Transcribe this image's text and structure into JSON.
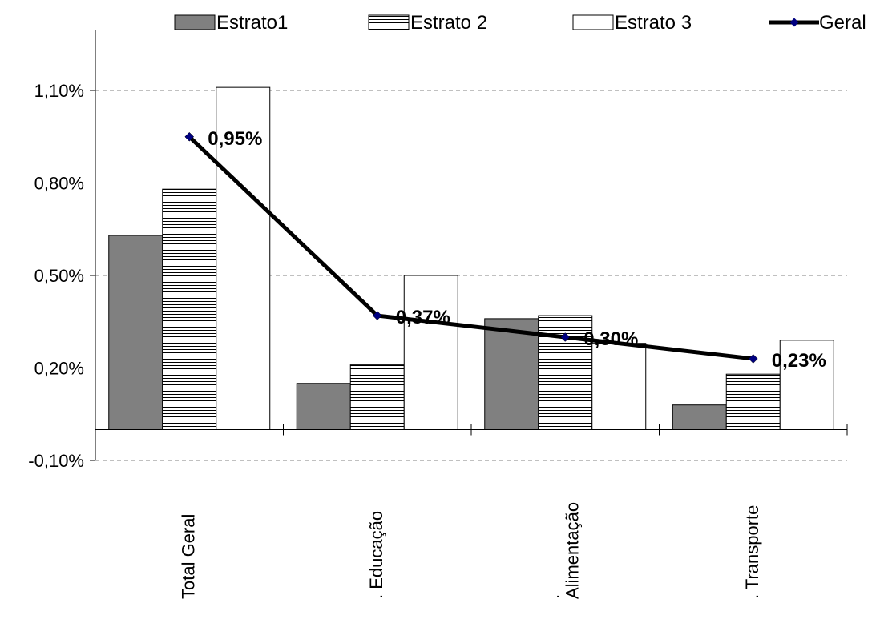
{
  "chart_data": {
    "type": "bar",
    "categories": [
      "Total Geral",
      ". Educação",
      ". Alimentação",
      ". Transporte"
    ],
    "series": [
      {
        "name": "Estrato1",
        "kind": "bar",
        "values": [
          0.63,
          0.15,
          0.36,
          0.08
        ],
        "fill": "#808080",
        "pattern": "solid"
      },
      {
        "name": "Estrato 2",
        "kind": "bar",
        "values": [
          0.78,
          0.21,
          0.37,
          0.18
        ],
        "fill": "#ffffff",
        "pattern": "horizontal-lines"
      },
      {
        "name": "Estrato 3",
        "kind": "bar",
        "values": [
          1.11,
          0.5,
          0.28,
          0.29
        ],
        "fill": "#ffffff",
        "pattern": "none"
      },
      {
        "name": "Geral",
        "kind": "line",
        "values": [
          0.95,
          0.37,
          0.3,
          0.23
        ],
        "labels": [
          "0,95%",
          "0,37%",
          "0,30%",
          "0,23%"
        ],
        "color": "#000000",
        "marker_color": "#000080"
      }
    ],
    "y_ticks": [
      "1,10%",
      "0,80%",
      "0,50%",
      "0,20%",
      "-0,10%"
    ],
    "y_tick_values": [
      1.1,
      0.8,
      0.5,
      0.2,
      -0.1
    ],
    "ylim": [
      -0.1,
      1.3
    ],
    "grid": "dashed horizontal",
    "legend_position": "top",
    "title": "",
    "xlabel": "",
    "ylabel": ""
  }
}
